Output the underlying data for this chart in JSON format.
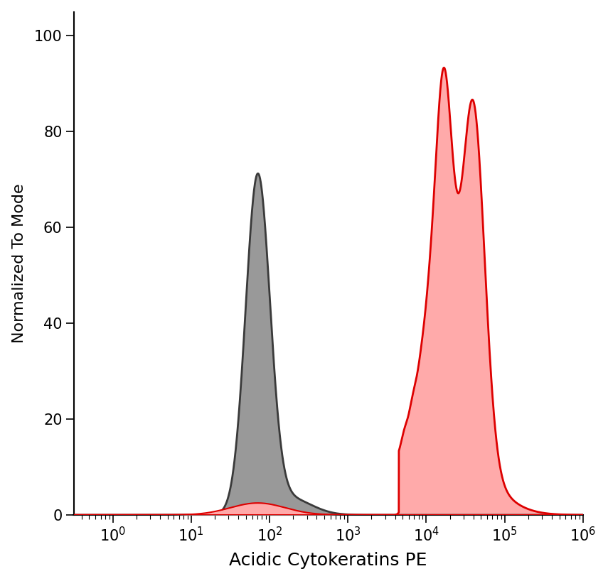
{
  "xlabel": "Acidic Cytokeratins PE",
  "ylabel": "Normalized To Mode",
  "ylim": [
    0,
    105
  ],
  "yticks": [
    0,
    20,
    40,
    60,
    80,
    100
  ],
  "gray_fill_color": "#999999",
  "gray_edge_color": "#3a3a3a",
  "red_fill_color": "#ffaaaa",
  "red_edge_color": "#dd0000",
  "background_color": "#ffffff",
  "xlabel_fontsize": 18,
  "ylabel_fontsize": 16,
  "tick_fontsize": 15,
  "linewidth": 2.0
}
